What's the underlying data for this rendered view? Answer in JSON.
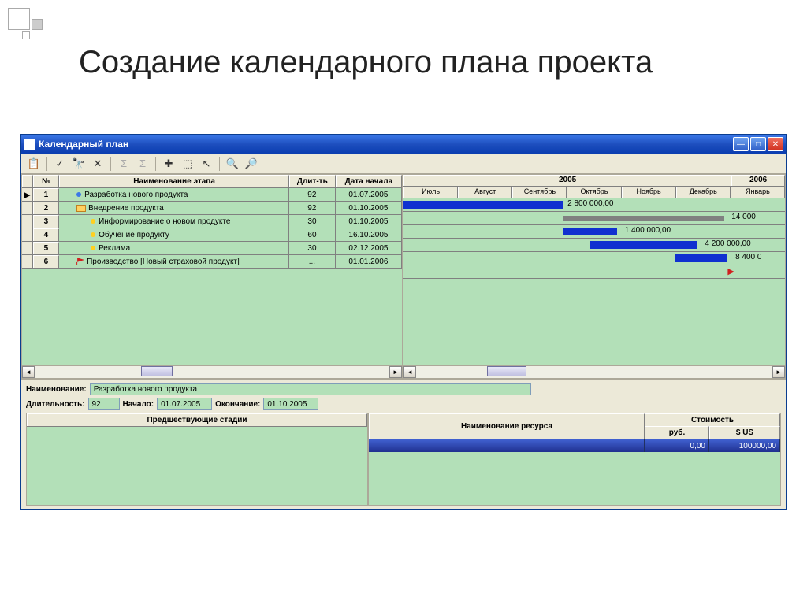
{
  "slide": {
    "title": "Создание календарного плана проекта"
  },
  "window": {
    "title": "Календарный план"
  },
  "grid": {
    "headers": {
      "num": "№",
      "name": "Наименование этапа",
      "dur": "Длит-ть",
      "date": "Дата начала"
    },
    "rows": [
      {
        "n": "1",
        "name": "Разработка нового продукта",
        "dur": "92",
        "date": "01.07.2005",
        "icon": "blue",
        "indent": 1,
        "marker": "▶"
      },
      {
        "n": "2",
        "name": "Внедрение продукта",
        "dur": "92",
        "date": "01.10.2005",
        "icon": "folder",
        "indent": 1,
        "marker": ""
      },
      {
        "n": "3",
        "name": "Информирование о новом продукте",
        "dur": "30",
        "date": "01.10.2005",
        "icon": "yel",
        "indent": 2,
        "marker": ""
      },
      {
        "n": "4",
        "name": "Обучение продукту",
        "dur": "60",
        "date": "16.10.2005",
        "icon": "yel",
        "indent": 2,
        "marker": ""
      },
      {
        "n": "5",
        "name": "Реклама",
        "dur": "30",
        "date": "02.12.2005",
        "icon": "yel",
        "indent": 2,
        "marker": ""
      },
      {
        "n": "6",
        "name": "Производство [Новый страховой продукт]",
        "dur": "...",
        "date": "01.01.2006",
        "icon": "flag",
        "indent": 1,
        "marker": ""
      }
    ]
  },
  "timeline": {
    "years": [
      {
        "label": "2005",
        "width_pct": 86
      },
      {
        "label": "2006",
        "width_pct": 14
      }
    ],
    "months": [
      "Июль",
      "Август",
      "Сентябрь",
      "Октябрь",
      "Ноябрь",
      "Декабрь",
      "Январь"
    ],
    "bars": [
      {
        "row": 0,
        "left_pct": 0,
        "width_pct": 42,
        "type": "blue",
        "label": "2 800 000,00",
        "label_left_pct": 43
      },
      {
        "row": 1,
        "left_pct": 42,
        "width_pct": 42,
        "type": "gray",
        "label": "14 000",
        "label_left_pct": 86
      },
      {
        "row": 2,
        "left_pct": 42,
        "width_pct": 14,
        "type": "blue",
        "label": "1 400 000,00",
        "label_left_pct": 58
      },
      {
        "row": 3,
        "left_pct": 49,
        "width_pct": 28,
        "type": "blue",
        "label": "4 200 000,00",
        "label_left_pct": 79
      },
      {
        "row": 4,
        "left_pct": 71,
        "width_pct": 14,
        "type": "blue",
        "label": "8 400 0",
        "label_left_pct": 87
      }
    ],
    "flag_row": 5,
    "flag_left_pct": 85
  },
  "detail": {
    "labels": {
      "name": "Наименование:",
      "dur": "Длительность:",
      "start": "Начало:",
      "end": "Окончание:"
    },
    "name": "Разработка нового продукта",
    "dur": "92",
    "start": "01.07.2005",
    "end": "01.10.2005"
  },
  "lower": {
    "left_header": "Предшествующие стадии",
    "right_headers": {
      "res": "Наименование ресурса",
      "cost": "Стоимость",
      "rub": "руб.",
      "usd": "$ US"
    },
    "sel": {
      "res": "",
      "rub": "0,00",
      "usd": "100000,00"
    }
  },
  "colors": {
    "pane_bg": "#b3e0b8",
    "bar_blue": "#1030d0",
    "bar_gray": "#808080",
    "titlebar": "#1e4fbf"
  }
}
